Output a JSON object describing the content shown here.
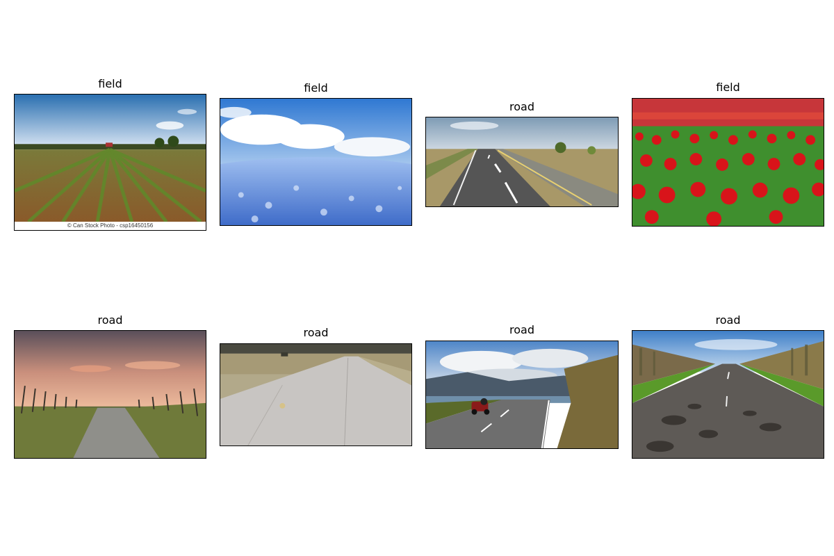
{
  "panels": [
    {
      "title": "field",
      "watermark": "© Can Stock Photo - csp16450156"
    },
    {
      "title": "field"
    },
    {
      "title": "road"
    },
    {
      "title": "field"
    },
    {
      "title": "road"
    },
    {
      "title": "road"
    },
    {
      "title": "road"
    },
    {
      "title": "road"
    }
  ],
  "colors": {
    "sky_blue": "#4a90d9",
    "soil_brown": "#8a6a3a",
    "crop_green": "#6b8e3a",
    "blue_flower": "#5b86d6",
    "red_tulip": "#d8141a",
    "leaf_green": "#3f8f2e",
    "asphalt": "#505050",
    "concrete": "#c8c5c2",
    "sunset_peach": "#e8a88a"
  }
}
